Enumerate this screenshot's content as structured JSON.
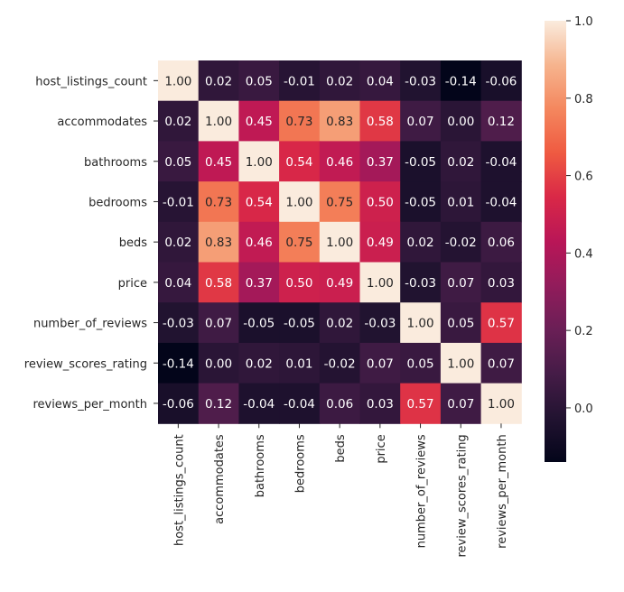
{
  "chart_data": {
    "type": "heatmap",
    "title": "",
    "labels": [
      "host_listings_count",
      "accommodates",
      "bathrooms",
      "bedrooms",
      "beds",
      "price",
      "number_of_reviews",
      "review_scores_rating",
      "reviews_per_month"
    ],
    "values": [
      [
        1.0,
        0.02,
        0.05,
        -0.01,
        0.02,
        0.04,
        -0.03,
        -0.14,
        -0.06
      ],
      [
        0.02,
        1.0,
        0.45,
        0.73,
        0.83,
        0.58,
        0.07,
        0.0,
        0.12
      ],
      [
        0.05,
        0.45,
        1.0,
        0.54,
        0.46,
        0.37,
        -0.05,
        0.02,
        -0.04
      ],
      [
        -0.01,
        0.73,
        0.54,
        1.0,
        0.75,
        0.5,
        -0.05,
        0.01,
        -0.04
      ],
      [
        0.02,
        0.83,
        0.46,
        0.75,
        1.0,
        0.49,
        0.02,
        -0.02,
        0.06
      ],
      [
        0.04,
        0.58,
        0.37,
        0.5,
        0.49,
        1.0,
        -0.03,
        0.07,
        0.03
      ],
      [
        -0.03,
        0.07,
        -0.05,
        -0.05,
        0.02,
        -0.03,
        1.0,
        0.05,
        0.57
      ],
      [
        -0.14,
        0.0,
        0.02,
        0.01,
        -0.02,
        0.07,
        0.05,
        1.0,
        0.07
      ],
      [
        -0.06,
        0.12,
        -0.04,
        -0.04,
        0.06,
        0.03,
        0.57,
        0.07,
        1.0
      ]
    ],
    "colormap": "rocket",
    "colorbar": {
      "range": [
        -0.14,
        1.0
      ],
      "ticks": [
        "0.0",
        "0.2",
        "0.4",
        "0.6",
        "0.8",
        "1.0"
      ],
      "placement": "right"
    }
  }
}
